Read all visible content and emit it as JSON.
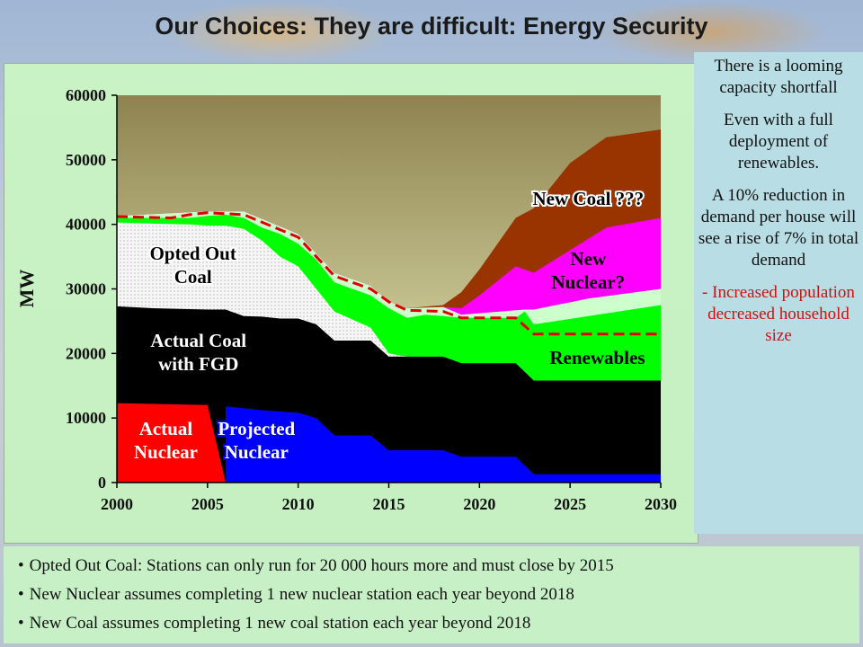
{
  "title": "Our Choices: They are difficult:  Energy Security",
  "side_panel": {
    "p1": "There is a looming capacity shortfall",
    "p2": "Even with a full deployment of renewables.",
    "p3": "A 10% reduction in demand per house will see a rise of 7% in total demand",
    "p4": "-  Increased population decreased household size"
  },
  "notes": [
    "Opted Out Coal: Stations can only run for 20 000 hours more and must close by 2015",
    "New Nuclear assumes completing 1 new nuclear station each year beyond 2018",
    "New Coal assumes completing 1 new coal station each year beyond 2018"
  ],
  "colors": {
    "actual_nuclear": "#ff0000",
    "projected_nuclear": "#0000ff",
    "coal_fgd": "#000000",
    "opted_out": "#f4f4f4",
    "renewables": "#00ff00",
    "light_green": "#ccffcc",
    "new_nuclear": "#ff00ff",
    "new_coal": "#993300",
    "demand_line": "#dd0000"
  },
  "chart_data": {
    "type": "area",
    "ylabel": "MW",
    "xlabel": "",
    "x_ticks": [
      "2000",
      "2005",
      "2010",
      "2015",
      "2020",
      "2025",
      "2030"
    ],
    "y_ticks": [
      "0",
      "10000",
      "20000",
      "30000",
      "40000",
      "50000",
      "60000"
    ],
    "xlim": [
      2000,
      2030
    ],
    "ylim": [
      0,
      60000
    ],
    "boundaries": [
      {
        "name": "Nuclear (actual + projected)",
        "points": [
          [
            2000,
            12300
          ],
          [
            2005,
            12000
          ],
          [
            2006,
            11800
          ],
          [
            2008,
            11200
          ],
          [
            2010,
            10800
          ],
          [
            2011,
            10000
          ],
          [
            2012,
            7300
          ],
          [
            2014,
            7300
          ],
          [
            2015,
            5000
          ],
          [
            2018,
            5000
          ],
          [
            2019,
            4000
          ],
          [
            2022,
            4000
          ],
          [
            2023,
            1300
          ],
          [
            2030,
            1300
          ]
        ]
      },
      {
        "name": "Actual Coal with FGD",
        "points": [
          [
            2000,
            27300
          ],
          [
            2002,
            27000
          ],
          [
            2005,
            26800
          ],
          [
            2006,
            26800
          ],
          [
            2007,
            25800
          ],
          [
            2008,
            25700
          ],
          [
            2009,
            25400
          ],
          [
            2010,
            25400
          ],
          [
            2011,
            24500
          ],
          [
            2012,
            22000
          ],
          [
            2014,
            22000
          ],
          [
            2015,
            19500
          ],
          [
            2016,
            19500
          ],
          [
            2018,
            19500
          ],
          [
            2019,
            18500
          ],
          [
            2022,
            18500
          ],
          [
            2023,
            15800
          ],
          [
            2030,
            15800
          ]
        ]
      },
      {
        "name": "Opted Out Coal",
        "points": [
          [
            2000,
            40300
          ],
          [
            2002,
            40100
          ],
          [
            2004,
            40000
          ],
          [
            2005,
            39800
          ],
          [
            2006,
            39800
          ],
          [
            2007,
            39300
          ],
          [
            2008,
            37500
          ],
          [
            2009,
            35000
          ],
          [
            2010,
            33500
          ],
          [
            2011,
            30000
          ],
          [
            2012,
            26500
          ],
          [
            2014,
            24000
          ],
          [
            2015,
            20000
          ],
          [
            2016,
            19500
          ],
          [
            2018,
            19500
          ],
          [
            2019,
            18500
          ],
          [
            2022,
            18500
          ],
          [
            2023,
            15800
          ],
          [
            2030,
            15800
          ]
        ]
      },
      {
        "name": "Renewables",
        "points": [
          [
            2000,
            41000
          ],
          [
            2002,
            41000
          ],
          [
            2004,
            41000
          ],
          [
            2005,
            41300
          ],
          [
            2006,
            41500
          ],
          [
            2007,
            41000
          ],
          [
            2008,
            39500
          ],
          [
            2009,
            38500
          ],
          [
            2010,
            37000
          ],
          [
            2011,
            34500
          ],
          [
            2012,
            31000
          ],
          [
            2014,
            29000
          ],
          [
            2015,
            27000
          ],
          [
            2016,
            25500
          ],
          [
            2017,
            26000
          ],
          [
            2018,
            25800
          ],
          [
            2019,
            25500
          ],
          [
            2022,
            25500
          ],
          [
            2022.5,
            26500
          ],
          [
            2023,
            24500
          ],
          [
            2030,
            27500
          ]
        ]
      },
      {
        "name": "Light green band",
        "points": [
          [
            2000,
            41300
          ],
          [
            2005,
            42000
          ],
          [
            2007,
            42000
          ],
          [
            2010,
            38500
          ],
          [
            2012,
            32500
          ],
          [
            2014,
            30500
          ],
          [
            2015,
            28000
          ],
          [
            2016,
            27000
          ],
          [
            2018,
            27200
          ],
          [
            2019,
            26000
          ],
          [
            2022,
            26700
          ],
          [
            2022.5,
            26800
          ],
          [
            2023,
            26800
          ],
          [
            2026,
            28500
          ],
          [
            2030,
            30000
          ]
        ]
      },
      {
        "name": "New Nuclear?",
        "points": [
          [
            2000,
            41300
          ],
          [
            2005,
            42000
          ],
          [
            2007,
            42000
          ],
          [
            2010,
            38500
          ],
          [
            2012,
            32500
          ],
          [
            2014,
            30500
          ],
          [
            2015,
            28000
          ],
          [
            2016,
            27000
          ],
          [
            2018,
            27200
          ],
          [
            2019,
            27000
          ],
          [
            2020,
            29000
          ],
          [
            2022,
            33500
          ],
          [
            2023,
            32500
          ],
          [
            2025,
            36000
          ],
          [
            2027,
            39500
          ],
          [
            2030,
            41000
          ]
        ]
      },
      {
        "name": "New Coal ???",
        "points": [
          [
            2000,
            41300
          ],
          [
            2005,
            42000
          ],
          [
            2007,
            42000
          ],
          [
            2010,
            38500
          ],
          [
            2012,
            32500
          ],
          [
            2014,
            30500
          ],
          [
            2015,
            28000
          ],
          [
            2016,
            27000
          ],
          [
            2018,
            27500
          ],
          [
            2019,
            29500
          ],
          [
            2020,
            33000
          ],
          [
            2022,
            41000
          ],
          [
            2023,
            42500
          ],
          [
            2025,
            49500
          ],
          [
            2027,
            53500
          ],
          [
            2030,
            54700
          ]
        ]
      }
    ],
    "demand_line": {
      "name": "Demand",
      "points": [
        [
          2000,
          41200
        ],
        [
          2003,
          41000
        ],
        [
          2004,
          41500
        ],
        [
          2005,
          41800
        ],
        [
          2007,
          41500
        ],
        [
          2010,
          38000
        ],
        [
          2012,
          32000
        ],
        [
          2014,
          30000
        ],
        [
          2015,
          28000
        ],
        [
          2016,
          26700
        ],
        [
          2018,
          26500
        ],
        [
          2019,
          25500
        ],
        [
          2022,
          25500
        ],
        [
          2023,
          23000
        ],
        [
          2030,
          23000
        ]
      ]
    },
    "annotations": {
      "opted_out": [
        "Opted Out",
        "Coal"
      ],
      "coal_fgd": [
        "Actual Coal",
        "with FGD"
      ],
      "actual_nuclear": [
        "Actual",
        "Nuclear"
      ],
      "projected_nuclear": [
        "Projected",
        "Nuclear"
      ],
      "renewables": "Renewables",
      "new_nuclear": [
        "New",
        "Nuclear?"
      ],
      "new_coal": "New Coal ???"
    }
  }
}
